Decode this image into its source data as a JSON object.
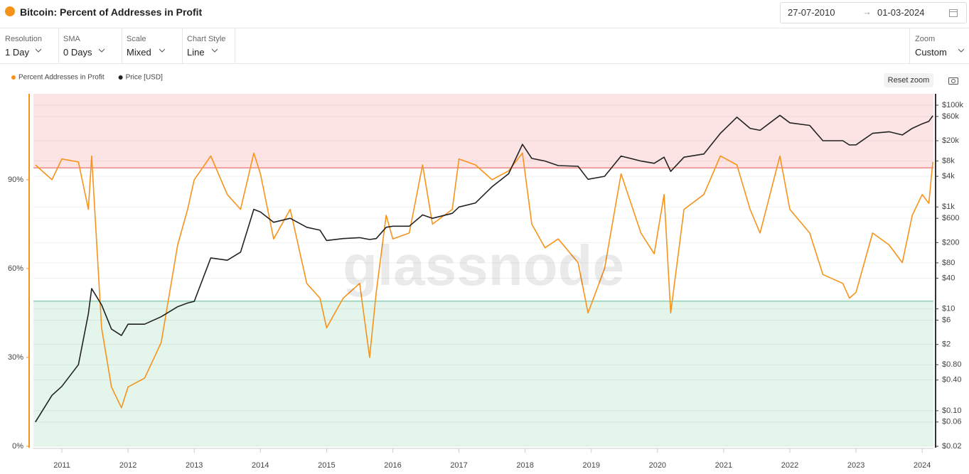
{
  "chart_data": {
    "type": "line",
    "title": "Bitcoin: Percent of Addresses in Profit",
    "watermark": "glassnode",
    "x": [
      2010.6,
      2010.85,
      2011.0,
      2011.25,
      2011.4,
      2011.45,
      2011.6,
      2011.75,
      2011.9,
      2012.0,
      2012.25,
      2012.5,
      2012.75,
      2012.9,
      2013.0,
      2013.25,
      2013.5,
      2013.7,
      2013.9,
      2014.0,
      2014.2,
      2014.45,
      2014.7,
      2014.9,
      2015.0,
      2015.25,
      2015.5,
      2015.65,
      2015.75,
      2015.9,
      2016.0,
      2016.25,
      2016.45,
      2016.6,
      2016.9,
      2017.0,
      2017.25,
      2017.5,
      2017.75,
      2017.96,
      2018.1,
      2018.3,
      2018.5,
      2018.8,
      2018.95,
      2019.2,
      2019.45,
      2019.75,
      2019.95,
      2020.1,
      2020.2,
      2020.4,
      2020.7,
      2020.95,
      2021.2,
      2021.4,
      2021.55,
      2021.85,
      2022.0,
      2022.3,
      2022.5,
      2022.8,
      2022.9,
      2023.0,
      2023.25,
      2023.5,
      2023.7,
      2023.85,
      2024.0,
      2024.1,
      2024.16
    ],
    "series": [
      {
        "name": "Percent Addresses in Profit",
        "color": "#f7931a",
        "axis": "y",
        "values": [
          95,
          90,
          97,
          96,
          80,
          98,
          40,
          20,
          13,
          20,
          23,
          35,
          68,
          80,
          90,
          98,
          85,
          80,
          99,
          92,
          70,
          80,
          55,
          50,
          40,
          50,
          55,
          30,
          52,
          78,
          70,
          72,
          95,
          75,
          80,
          97,
          95,
          90,
          93,
          99,
          75,
          67,
          70,
          62,
          45,
          60,
          92,
          72,
          65,
          85,
          45,
          80,
          85,
          98,
          95,
          80,
          72,
          98,
          80,
          72,
          58,
          55,
          50,
          52,
          72,
          68,
          62,
          78,
          85,
          82,
          96
        ]
      },
      {
        "name": "Price [USD]",
        "color": "#222222",
        "axis": "y2",
        "values": [
          0.06,
          0.2,
          0.3,
          0.8,
          8,
          25,
          12,
          4,
          3,
          5,
          5,
          7,
          11,
          13,
          14,
          100,
          90,
          130,
          900,
          800,
          500,
          600,
          400,
          350,
          220,
          240,
          250,
          230,
          240,
          400,
          420,
          420,
          700,
          600,
          750,
          1000,
          1200,
          2500,
          4500,
          17000,
          9000,
          8000,
          6500,
          6300,
          3500,
          4000,
          10000,
          8000,
          7200,
          9500,
          5000,
          9500,
          11000,
          28000,
          58000,
          35000,
          32000,
          63000,
          45000,
          40000,
          20000,
          20000,
          16500,
          16600,
          28000,
          30000,
          26000,
          35000,
          43000,
          48000,
          62000
        ]
      }
    ],
    "xlim": [
      2010.57,
      2024.17
    ],
    "xticks": [
      2011,
      2012,
      2013,
      2014,
      2015,
      2016,
      2017,
      2018,
      2019,
      2020,
      2021,
      2022,
      2023,
      2024
    ],
    "ylim": [
      0,
      119
    ],
    "yticks": [
      {
        "value": 0,
        "label": "0%"
      },
      {
        "value": 30,
        "label": "30%"
      },
      {
        "value": 60,
        "label": "60%"
      },
      {
        "value": 90,
        "label": "90%"
      }
    ],
    "y2log": true,
    "y2lim": [
      0.02,
      167000
    ],
    "y2ticks": [
      {
        "value": 0.02,
        "label": "$0.02"
      },
      {
        "value": 0.06,
        "label": "$0.06"
      },
      {
        "value": 0.1,
        "label": "$0.10"
      },
      {
        "value": 0.4,
        "label": "$0.40"
      },
      {
        "value": 0.8,
        "label": "$0.80"
      },
      {
        "value": 2,
        "label": "$2"
      },
      {
        "value": 6,
        "label": "$6"
      },
      {
        "value": 10,
        "label": "$10"
      },
      {
        "value": 40,
        "label": "$40"
      },
      {
        "value": 80,
        "label": "$80"
      },
      {
        "value": 200,
        "label": "$200"
      },
      {
        "value": 600,
        "label": "$600"
      },
      {
        "value": 1000,
        "label": "$1k"
      },
      {
        "value": 4000,
        "label": "$4k"
      },
      {
        "value": 8000,
        "label": "$8k"
      },
      {
        "value": 20000,
        "label": "$20k"
      },
      {
        "value": 60000,
        "label": "$60k"
      },
      {
        "value": 100000,
        "label": "$100k"
      }
    ],
    "upper_band": 94,
    "upper_band_color": "#fde4e4",
    "lower_band": 49,
    "lower_band_color": "#e4f5ec",
    "grid": true,
    "legend": "top-left"
  },
  "date_range": {
    "from": "27-07-2010",
    "to": "01-03-2024"
  },
  "controls": [
    {
      "label": "Resolution",
      "value": "1 Day"
    },
    {
      "label": "SMA",
      "value": "0 Days"
    },
    {
      "label": "Scale",
      "value": "Mixed"
    },
    {
      "label": "Chart Style",
      "value": "Line"
    }
  ],
  "zoom": {
    "label": "Zoom",
    "value": "Custom"
  },
  "reset_zoom": "Reset zoom"
}
